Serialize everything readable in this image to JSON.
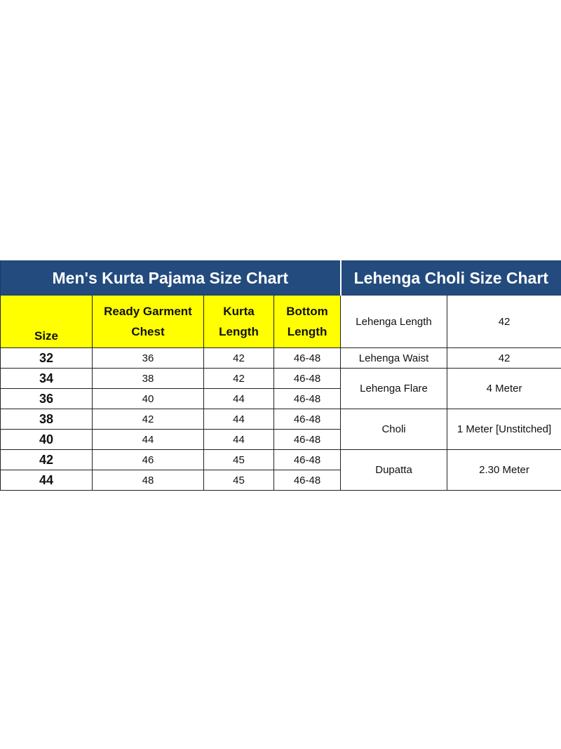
{
  "kurta_chart": {
    "title": "Men's Kurta Pajama Size Chart",
    "headers": {
      "size": "Size",
      "chest_line1": "Ready Garment",
      "chest_line2": "Chest",
      "kurta_line1": "Kurta",
      "kurta_line2": "Length",
      "bottom_line1": "Bottom",
      "bottom_line2": "Length"
    },
    "rows": [
      {
        "size": "32",
        "chest": "36",
        "kurta_length": "42",
        "bottom_length": "46-48"
      },
      {
        "size": "34",
        "chest": "38",
        "kurta_length": "42",
        "bottom_length": "46-48"
      },
      {
        "size": "36",
        "chest": "40",
        "kurta_length": "44",
        "bottom_length": "46-48"
      },
      {
        "size": "38",
        "chest": "42",
        "kurta_length": "44",
        "bottom_length": "46-48"
      },
      {
        "size": "40",
        "chest": "44",
        "kurta_length": "44",
        "bottom_length": "46-48"
      },
      {
        "size": "42",
        "chest": "46",
        "kurta_length": "45",
        "bottom_length": "46-48"
      },
      {
        "size": "44",
        "chest": "48",
        "kurta_length": "45",
        "bottom_length": "46-48"
      }
    ]
  },
  "lehenga_chart": {
    "title": "Lehenga Choli Size Chart",
    "rows": [
      {
        "label": "Lehenga Length",
        "value": "42"
      },
      {
        "label": "Lehenga Waist",
        "value": "42"
      },
      {
        "label": "Lehenga Flare",
        "value": "4 Meter"
      },
      {
        "label": "Choli",
        "value": "1 Meter [Unstitched]"
      },
      {
        "label": "Dupatta",
        "value": "2.30 Meter"
      }
    ]
  },
  "colors": {
    "header_blue": "#234b7d",
    "header_yellow": "#ffff00"
  }
}
